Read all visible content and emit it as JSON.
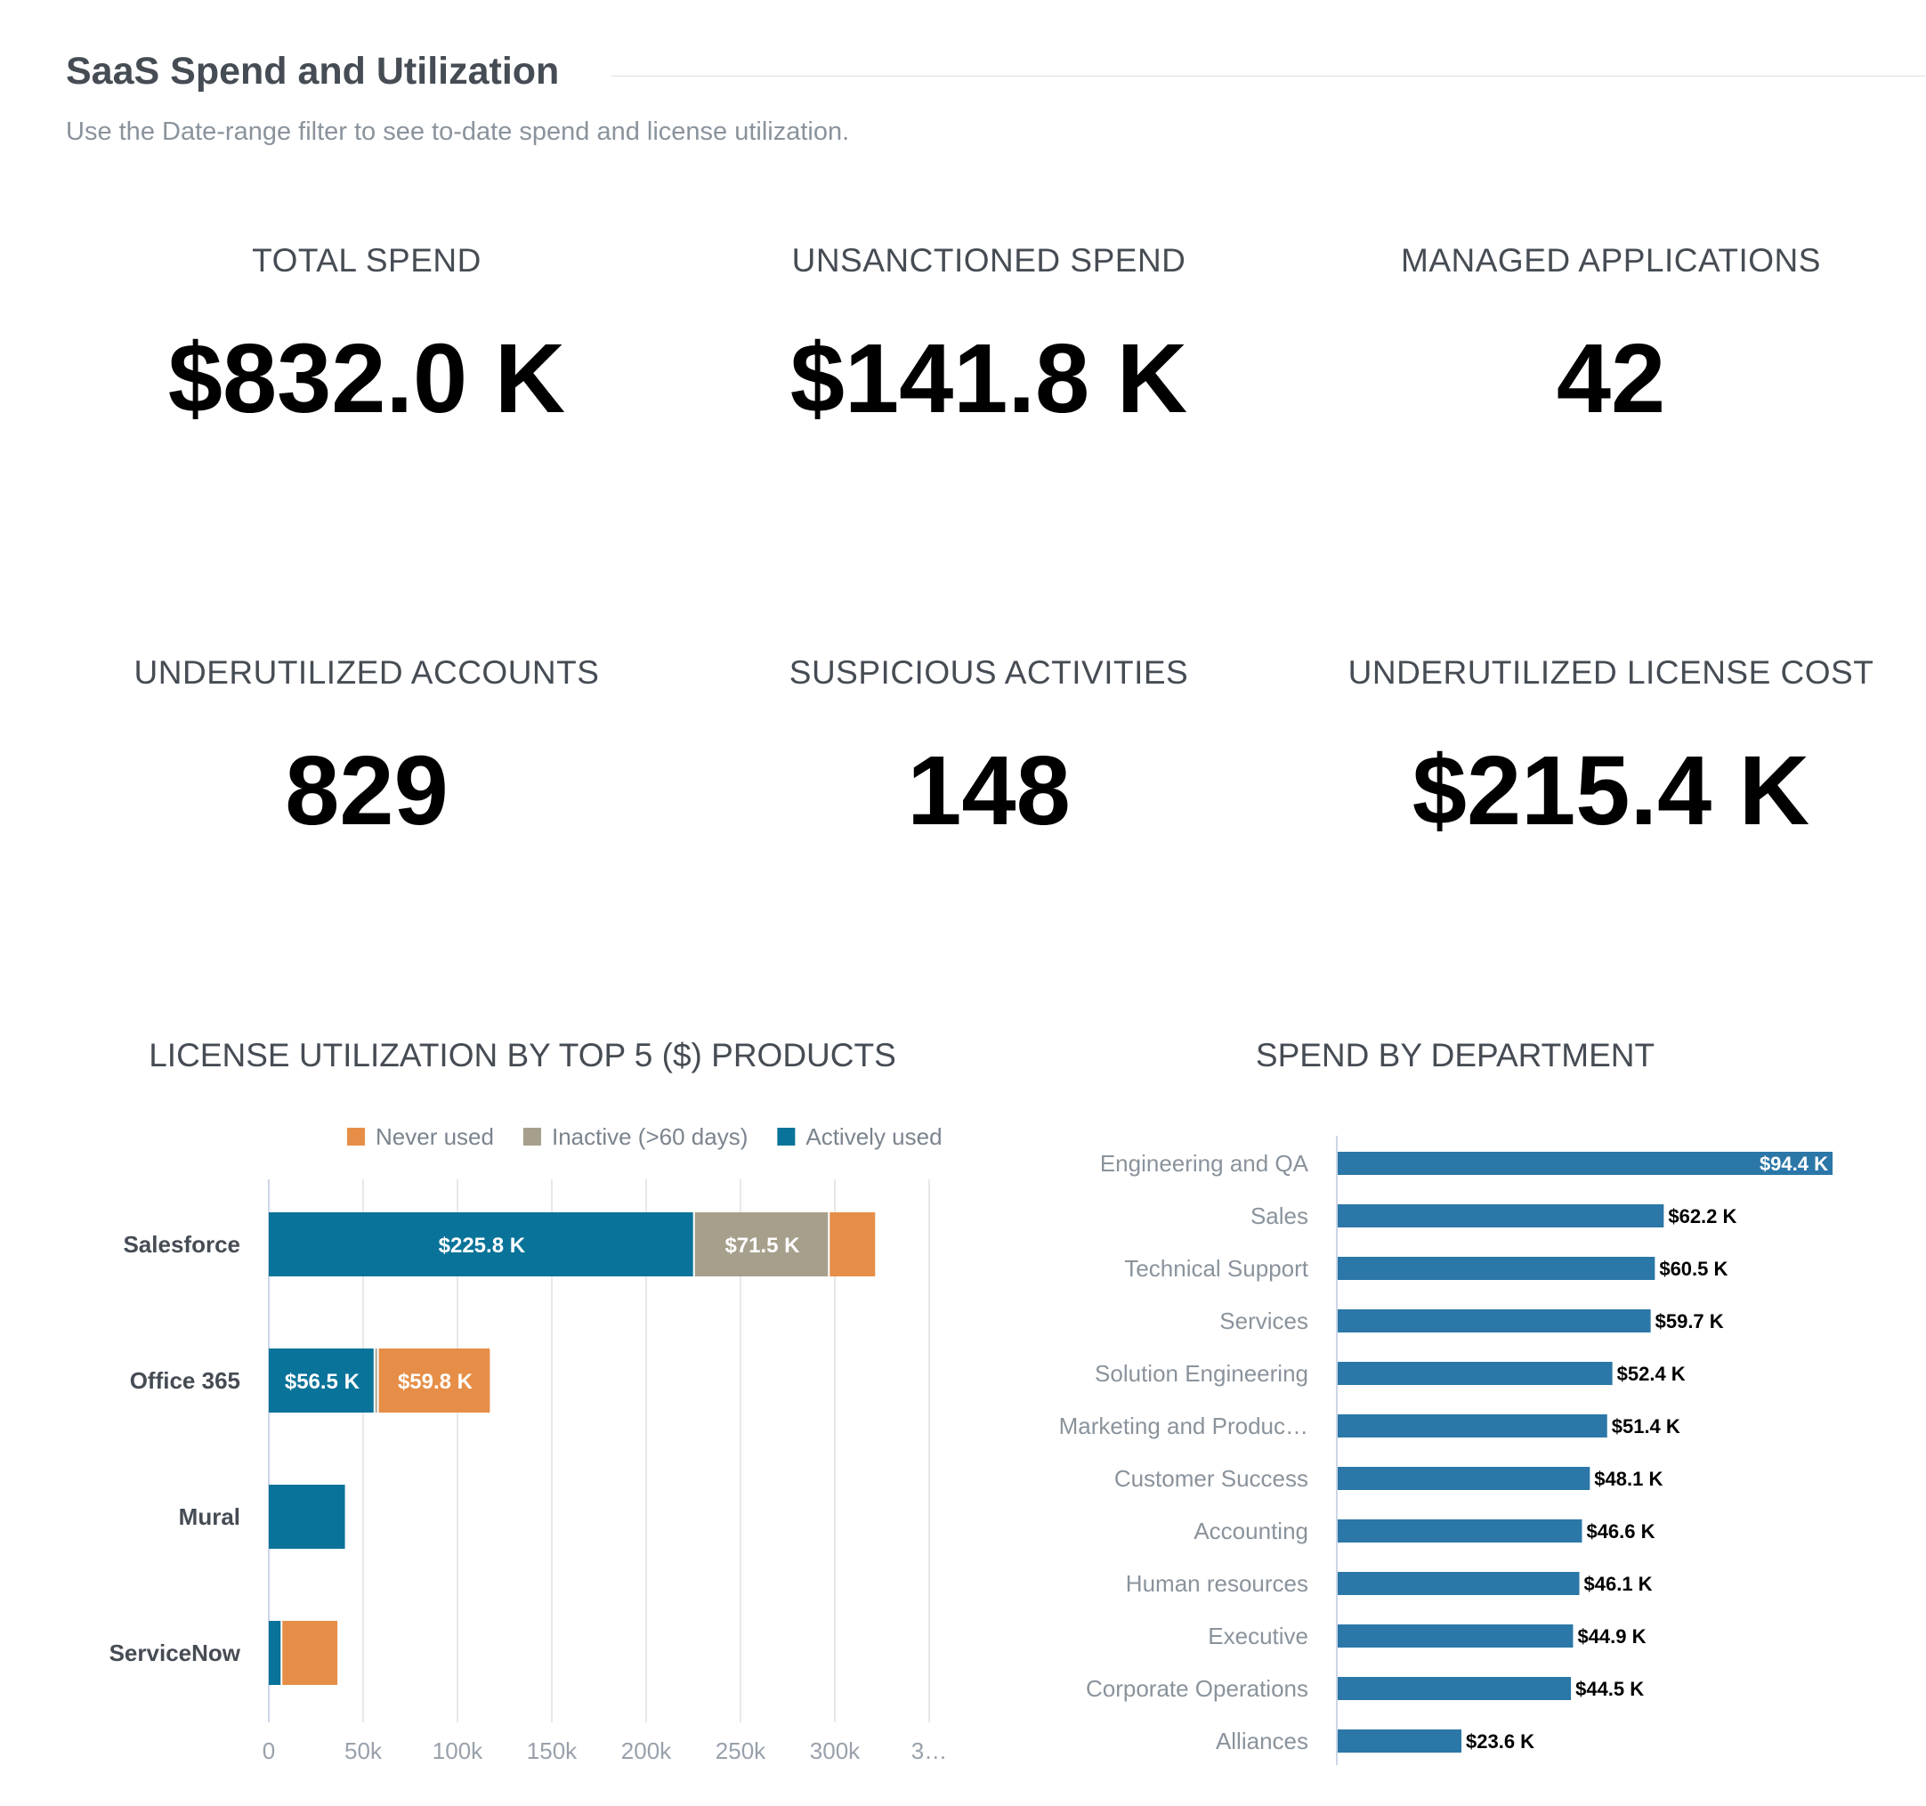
{
  "header": {
    "title": "SaaS Spend and Utilization",
    "subtitle": "Use the Date-range filter to see to-date spend and license utilization."
  },
  "kpis": [
    {
      "label": "TOTAL SPEND",
      "value": "$832.0 K"
    },
    {
      "label": "UNSANCTIONED SPEND",
      "value": "$141.8 K"
    },
    {
      "label": "MANAGED APPLICATIONS",
      "value": "42"
    },
    {
      "label": "UNDERUTILIZED ACCOUNTS",
      "value": "829"
    },
    {
      "label": "SUSPICIOUS ACTIVITIES",
      "value": "148"
    },
    {
      "label": "UNDERUTILIZED LICENSE COST",
      "value": "$215.4 K"
    }
  ],
  "chart_data": [
    {
      "type": "bar",
      "orientation": "horizontal",
      "stacked": true,
      "title": "LICENSE UTILIZATION BY TOP 5 ($) PRODUCTS",
      "categories": [
        "Salesforce",
        "Office 365",
        "Mural",
        "ServiceNow"
      ],
      "series": [
        {
          "name": "Actively used",
          "color": "#0a7399",
          "values": [
            225.8,
            56.5,
            41.3,
            7.2
          ],
          "labels": [
            "$225.8 K",
            "$56.5 K",
            "",
            ""
          ]
        },
        {
          "name": "Inactive (>60 days)",
          "color": "#a69f8c",
          "values": [
            71.5,
            1.8,
            0,
            0
          ],
          "labels": [
            "$71.5 K",
            "",
            "",
            ""
          ]
        },
        {
          "name": "Never used",
          "color": "#e68e47",
          "values": [
            25.0,
            59.8,
            0,
            30.1
          ],
          "labels": [
            "",
            "$59.8 K",
            "",
            ""
          ]
        }
      ],
      "legend_order": [
        "Never used",
        "Inactive (>60 days)",
        "Actively used"
      ],
      "legend_position": "top-right",
      "x_ticks": [
        "0",
        "50k",
        "100k",
        "150k",
        "200k",
        "250k",
        "300k",
        "3…"
      ],
      "xlim": [
        0,
        350
      ],
      "unit": "thousands USD",
      "grid": true
    },
    {
      "type": "bar",
      "orientation": "horizontal",
      "title": "SPEND BY DEPARTMENT",
      "color": "#2b77a8",
      "categories": [
        "Engineering and QA",
        "Sales",
        "Technical Support",
        "Services",
        "Solution Engineering",
        "Marketing and Produc…",
        "Customer Success",
        "Accounting",
        "Human resources",
        "Executive",
        "Corporate Operations",
        "Alliances"
      ],
      "values": [
        94.4,
        62.2,
        60.5,
        59.7,
        52.4,
        51.4,
        48.1,
        46.6,
        46.1,
        44.9,
        44.5,
        23.6
      ],
      "labels": [
        "$94.4 K",
        "$62.2 K",
        "$60.5 K",
        "$59.7 K",
        "$52.4 K",
        "$51.4 K",
        "$48.1 K",
        "$46.6 K",
        "$46.1 K",
        "$44.9 K",
        "$44.5 K",
        "$23.6 K"
      ],
      "unit": "thousands USD",
      "grid": false
    }
  ]
}
